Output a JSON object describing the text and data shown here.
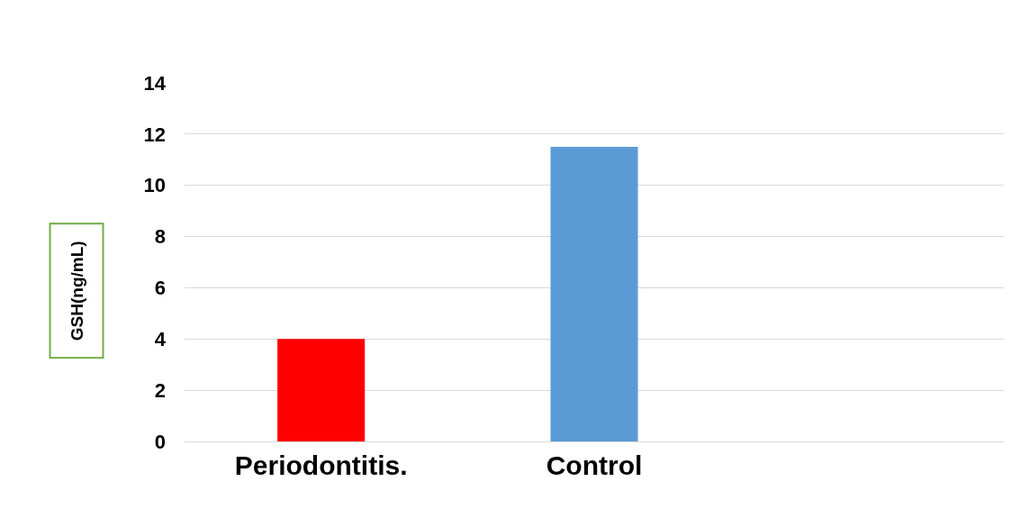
{
  "chart_data": {
    "type": "bar",
    "ylabel": "GSH(ng/mL)",
    "categories": [
      "Periodontitis.",
      "Control",
      null
    ],
    "values": [
      4,
      11.5,
      null
    ],
    "colors": [
      "#ff0000",
      "#5b9bd5",
      "#5b9bd5"
    ],
    "ylim": [
      0,
      14
    ],
    "yticks": [
      0,
      2,
      4,
      6,
      8,
      10,
      12,
      14
    ],
    "grid": "y",
    "legend": false
  }
}
